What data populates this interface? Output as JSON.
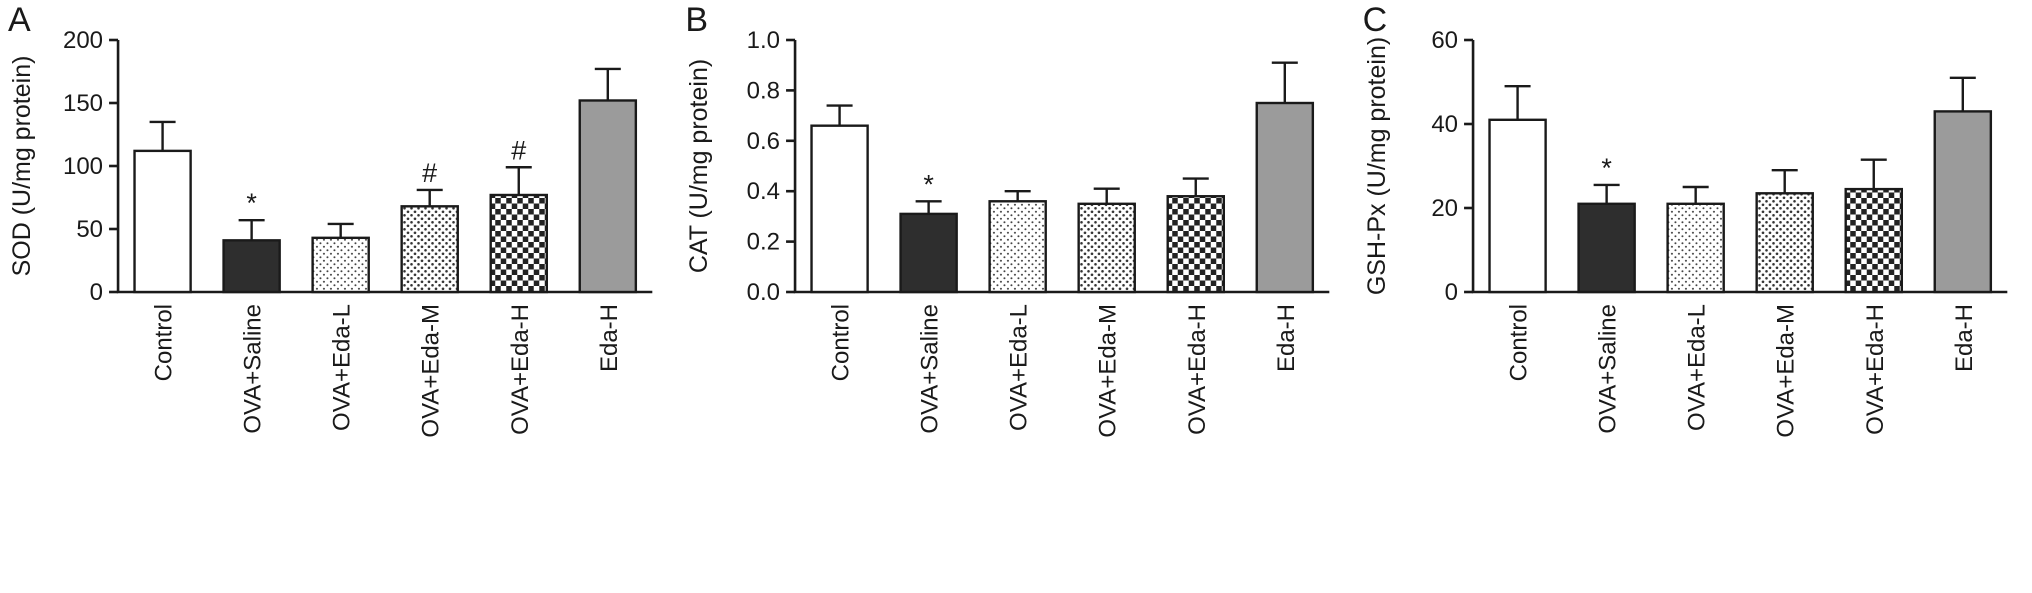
{
  "colors": {
    "ink": "#1a1a1a",
    "white_bar": "#ffffff",
    "black_bar": "#2e2e2e",
    "gray_bar": "#9b9b9b",
    "dot_ink": "#444444"
  },
  "chart_data": [
    {
      "type": "bar",
      "panel_label": "A",
      "title": "",
      "xlabel": "",
      "ylabel": "SOD (U/mg protein)",
      "ylim": [
        0,
        200
      ],
      "yticks": [
        0,
        50,
        100,
        150,
        200
      ],
      "ytick_labels": [
        "0",
        "50",
        "100",
        "150",
        "200"
      ],
      "categories": [
        "Control",
        "OVA+Saline",
        "OVA+Eda-L",
        "OVA+Eda-M",
        "OVA+Eda-H",
        "Eda-H"
      ],
      "values": [
        112,
        41,
        43,
        68,
        77,
        152
      ],
      "errors": [
        23,
        16,
        11,
        13,
        22,
        25
      ],
      "significance": [
        "",
        "*",
        "",
        "#",
        "#",
        ""
      ],
      "bar_fills": [
        "white",
        "black",
        "dots-light",
        "dots-medium",
        "checker",
        "gray"
      ],
      "grid": false,
      "legend": "none"
    },
    {
      "type": "bar",
      "panel_label": "B",
      "title": "",
      "xlabel": "",
      "ylabel": "CAT (U/mg protein)",
      "ylim": [
        0,
        1.0
      ],
      "yticks": [
        0,
        0.2,
        0.4,
        0.6,
        0.8,
        1.0
      ],
      "ytick_labels": [
        "0.0",
        "0.2",
        "0.4",
        "0.6",
        "0.8",
        "1.0"
      ],
      "categories": [
        "Control",
        "OVA+Saline",
        "OVA+Eda-L",
        "OVA+Eda-M",
        "OVA+Eda-H",
        "Eda-H"
      ],
      "values": [
        0.66,
        0.31,
        0.36,
        0.35,
        0.38,
        0.75
      ],
      "errors": [
        0.08,
        0.05,
        0.04,
        0.06,
        0.07,
        0.16
      ],
      "significance": [
        "",
        "*",
        "",
        "",
        "",
        ""
      ],
      "bar_fills": [
        "white",
        "black",
        "dots-light",
        "dots-medium",
        "checker",
        "gray"
      ],
      "grid": false,
      "legend": "none"
    },
    {
      "type": "bar",
      "panel_label": "C",
      "title": "",
      "xlabel": "",
      "ylabel": "GSH-Px (U/mg protein)",
      "ylim": [
        0,
        60
      ],
      "yticks": [
        0,
        20,
        40,
        60
      ],
      "ytick_labels": [
        "0",
        "20",
        "40",
        "60"
      ],
      "categories": [
        "Control",
        "OVA+Saline",
        "OVA+Eda-L",
        "OVA+Eda-M",
        "OVA+Eda-H",
        "Eda-H"
      ],
      "values": [
        41,
        21,
        21,
        23.5,
        24.5,
        43
      ],
      "errors": [
        8,
        4.5,
        4,
        5.5,
        7,
        8
      ],
      "significance": [
        "",
        "*",
        "",
        "",
        "",
        ""
      ],
      "bar_fills": [
        "white",
        "black",
        "dots-light",
        "dots-medium",
        "checker",
        "gray"
      ],
      "grid": false,
      "legend": "none"
    }
  ]
}
